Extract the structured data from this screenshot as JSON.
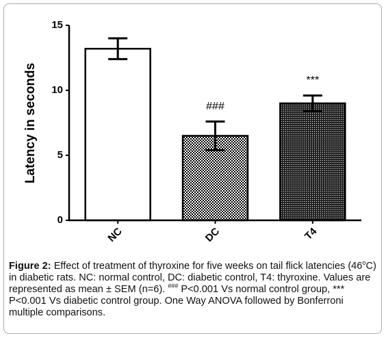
{
  "chart_data": {
    "type": "bar",
    "categories": [
      "NC",
      "DC",
      "T4"
    ],
    "values": [
      13.2,
      6.5,
      9.0
    ],
    "errors": [
      0.8,
      1.1,
      0.6
    ],
    "annotations": [
      null,
      "###",
      "***"
    ],
    "ylabel": "Latency in seconds",
    "ylim": [
      0,
      15
    ],
    "yticks": [
      0,
      5,
      10,
      15
    ],
    "grid": false
  },
  "caption": {
    "label": "Figure 2:",
    "parts": [
      "Effect of treatment of thyroxine for five weeks on tail flick latencies (46",
      "o",
      "C) in diabetic rats. NC: normal control, DC: diabetic control, T4: thyroxine. Values are represented as mean ± SEM (n=6). ",
      "###",
      " P<0.001 Vs normal control group, *** P<0.001 Vs diabetic control group. One Way ANOVA followed by Bonferroni multiple comparisons."
    ]
  }
}
